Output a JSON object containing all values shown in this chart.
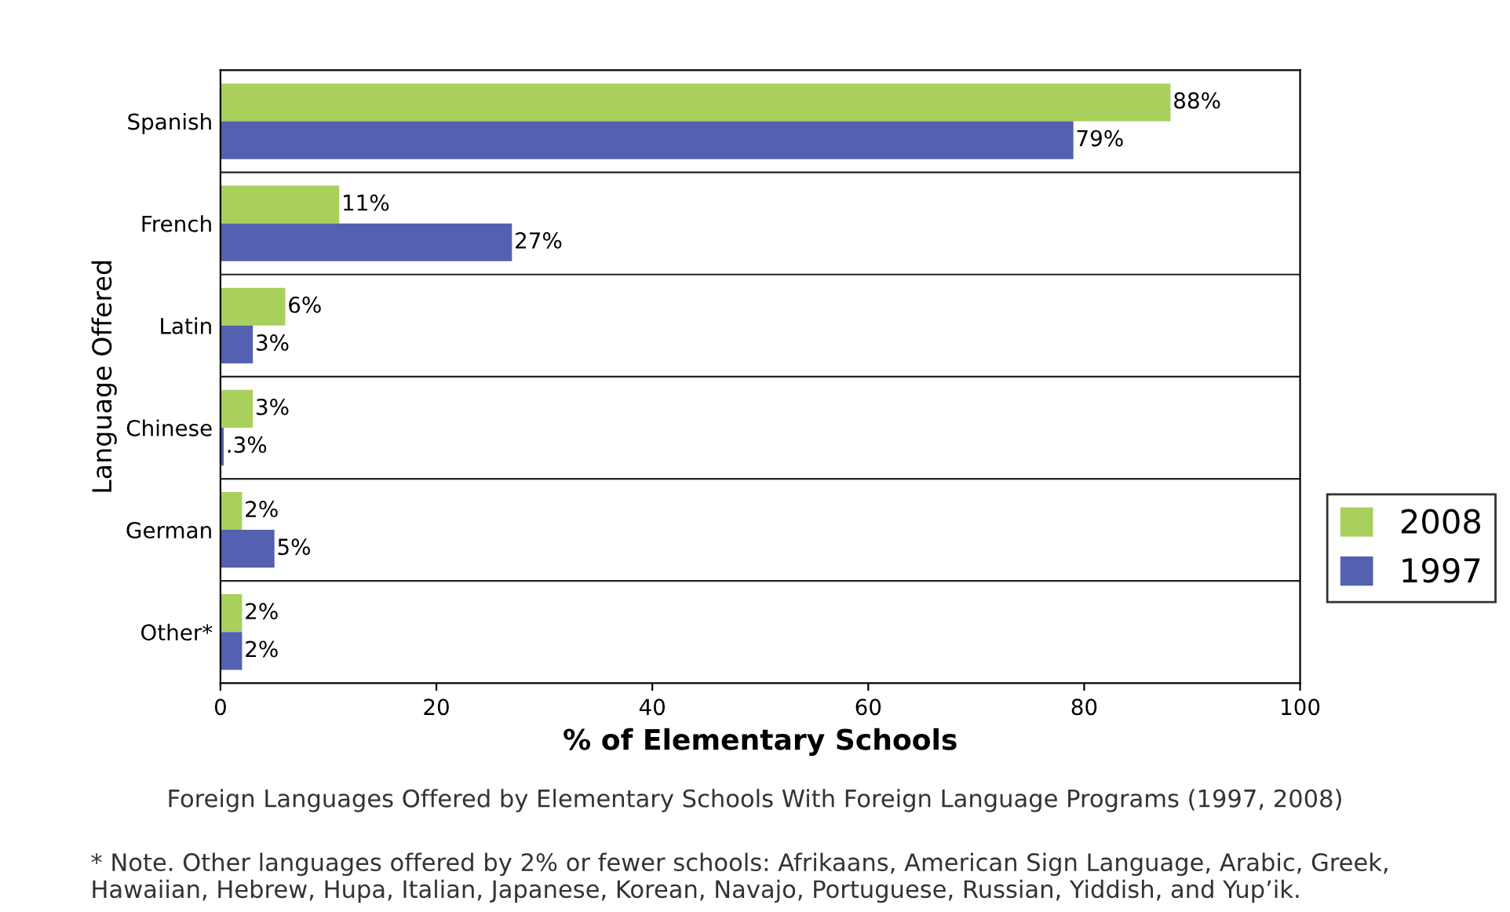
{
  "chart_data": {
    "type": "bar",
    "orientation": "horizontal",
    "title": "Foreign Languages Offered by Elementary Schools With Foreign Language Programs (1997, 2008)",
    "xlabel": "% of Elementary Schools",
    "ylabel": "Language Offered",
    "categories": [
      "Spanish",
      "French",
      "Latin",
      "Chinese",
      "German",
      "Other*"
    ],
    "series": [
      {
        "name": "2008",
        "color": "#a9d05c",
        "values": [
          88,
          11,
          6,
          3,
          2,
          2
        ],
        "value_labels": [
          "88%",
          "11%",
          "6%",
          "3%",
          "2%",
          "2%"
        ]
      },
      {
        "name": "1997",
        "color": "#5460b0",
        "values": [
          79,
          27,
          3,
          0.3,
          5,
          2
        ],
        "value_labels": [
          "79%",
          "27%",
          "3%",
          ".3%",
          "5%",
          "2%"
        ]
      }
    ],
    "xlim": [
      0,
      100
    ],
    "xticks": [
      0,
      20,
      40,
      60,
      80,
      100
    ],
    "grid": "y",
    "legend": "right",
    "annotations": [
      "* Note. Other languages offered by 2% or fewer schools: Afrikaans, American Sign Language, Arabic, Greek, Hawaiian, Hebrew, Hupa, Italian, Japanese, Korean, Navajo, Portuguese, Russian, Yiddish, and Yup’ik."
    ]
  }
}
